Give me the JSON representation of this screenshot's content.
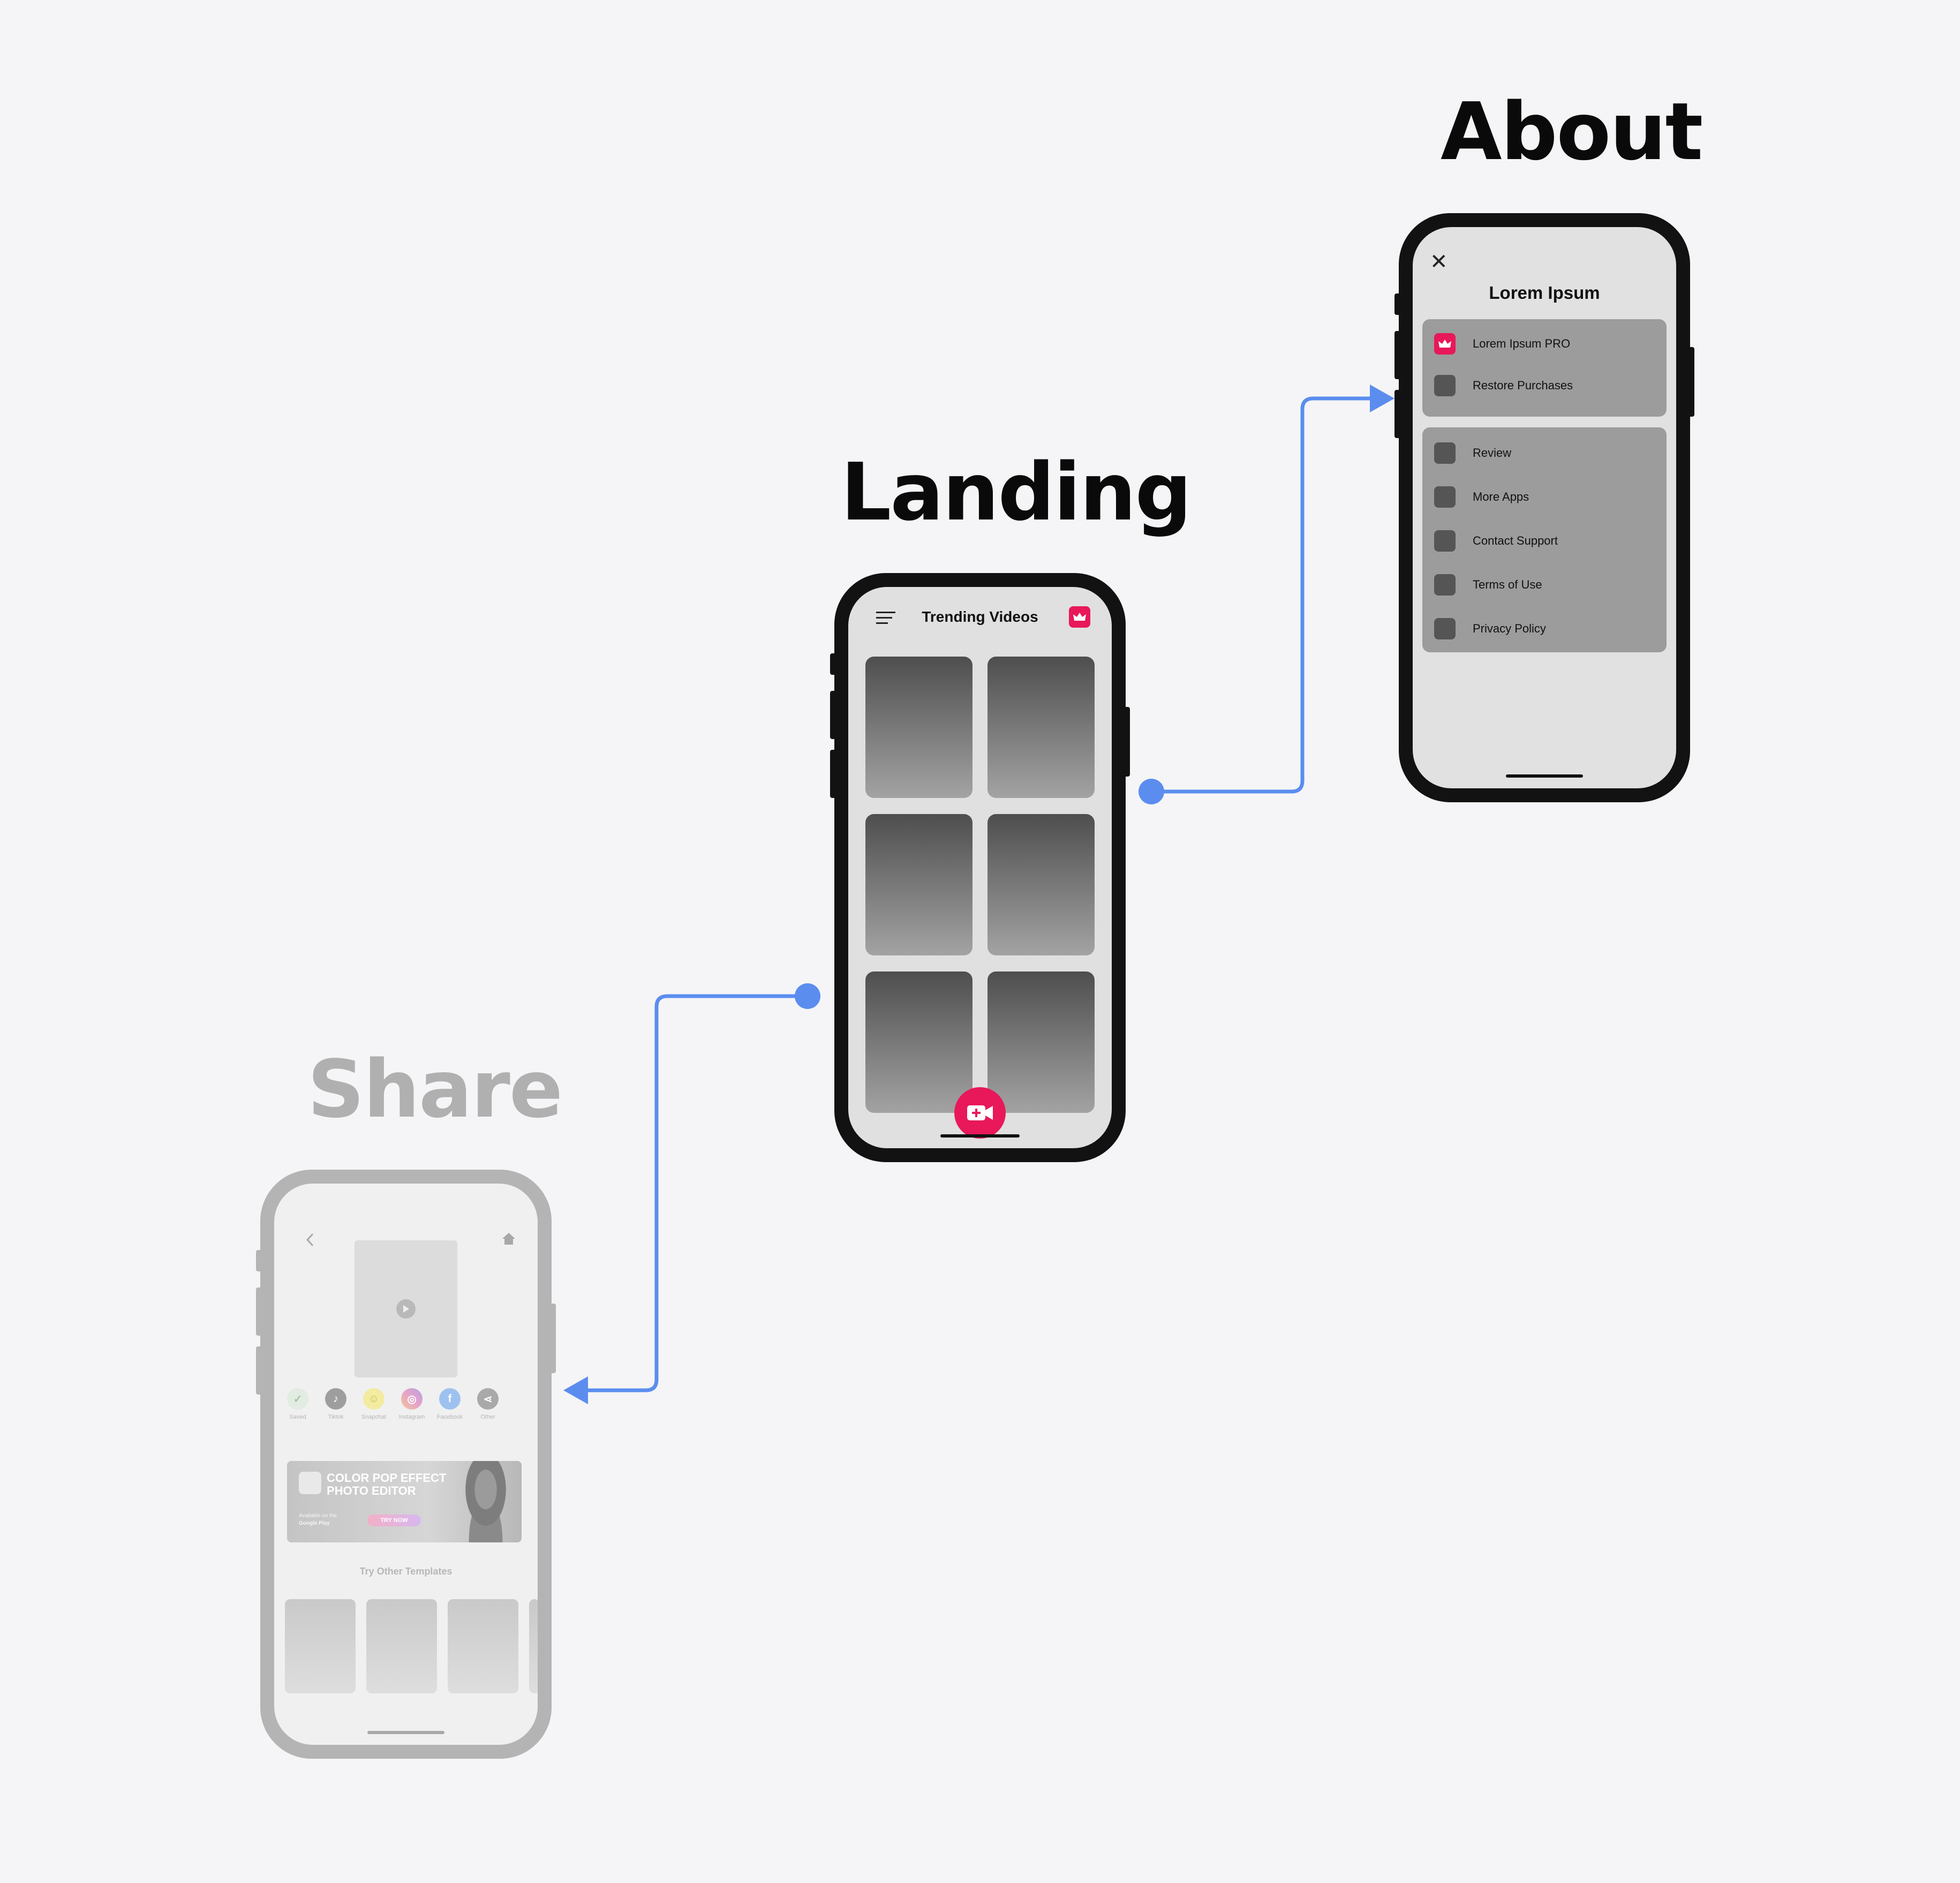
{
  "headings": {
    "about": "About",
    "landing": "Landing",
    "share": "Share"
  },
  "about": {
    "title": "Lorem Ipsum",
    "group1": [
      "Lorem Ipsum PRO",
      "Restore Purchases"
    ],
    "group2": [
      "Review",
      "More Apps",
      "Contact Support",
      "Terms of Use",
      "Privacy Policy"
    ]
  },
  "landing": {
    "title": "Trending Videos"
  },
  "share": {
    "social": [
      "Saved",
      "Tiktok",
      "Snapchat",
      "Instagram",
      "Facebook",
      "Other"
    ],
    "banner_title_1": "COLOR POP EFFECT",
    "banner_title_2": "PHOTO EDITOR",
    "available": "Available on the",
    "store": "Google Play",
    "try_button": "TRY NOW",
    "other_templates": "Try Other Templates"
  },
  "colors": {
    "accent": "#e8185a",
    "connector": "#5b8def",
    "frame": "#121212",
    "faded_frame": "#b4b4b4"
  },
  "icons": [
    "close-icon",
    "crown-icon",
    "menu-icon",
    "video-add-icon",
    "back-icon",
    "home-icon",
    "play-icon"
  ]
}
